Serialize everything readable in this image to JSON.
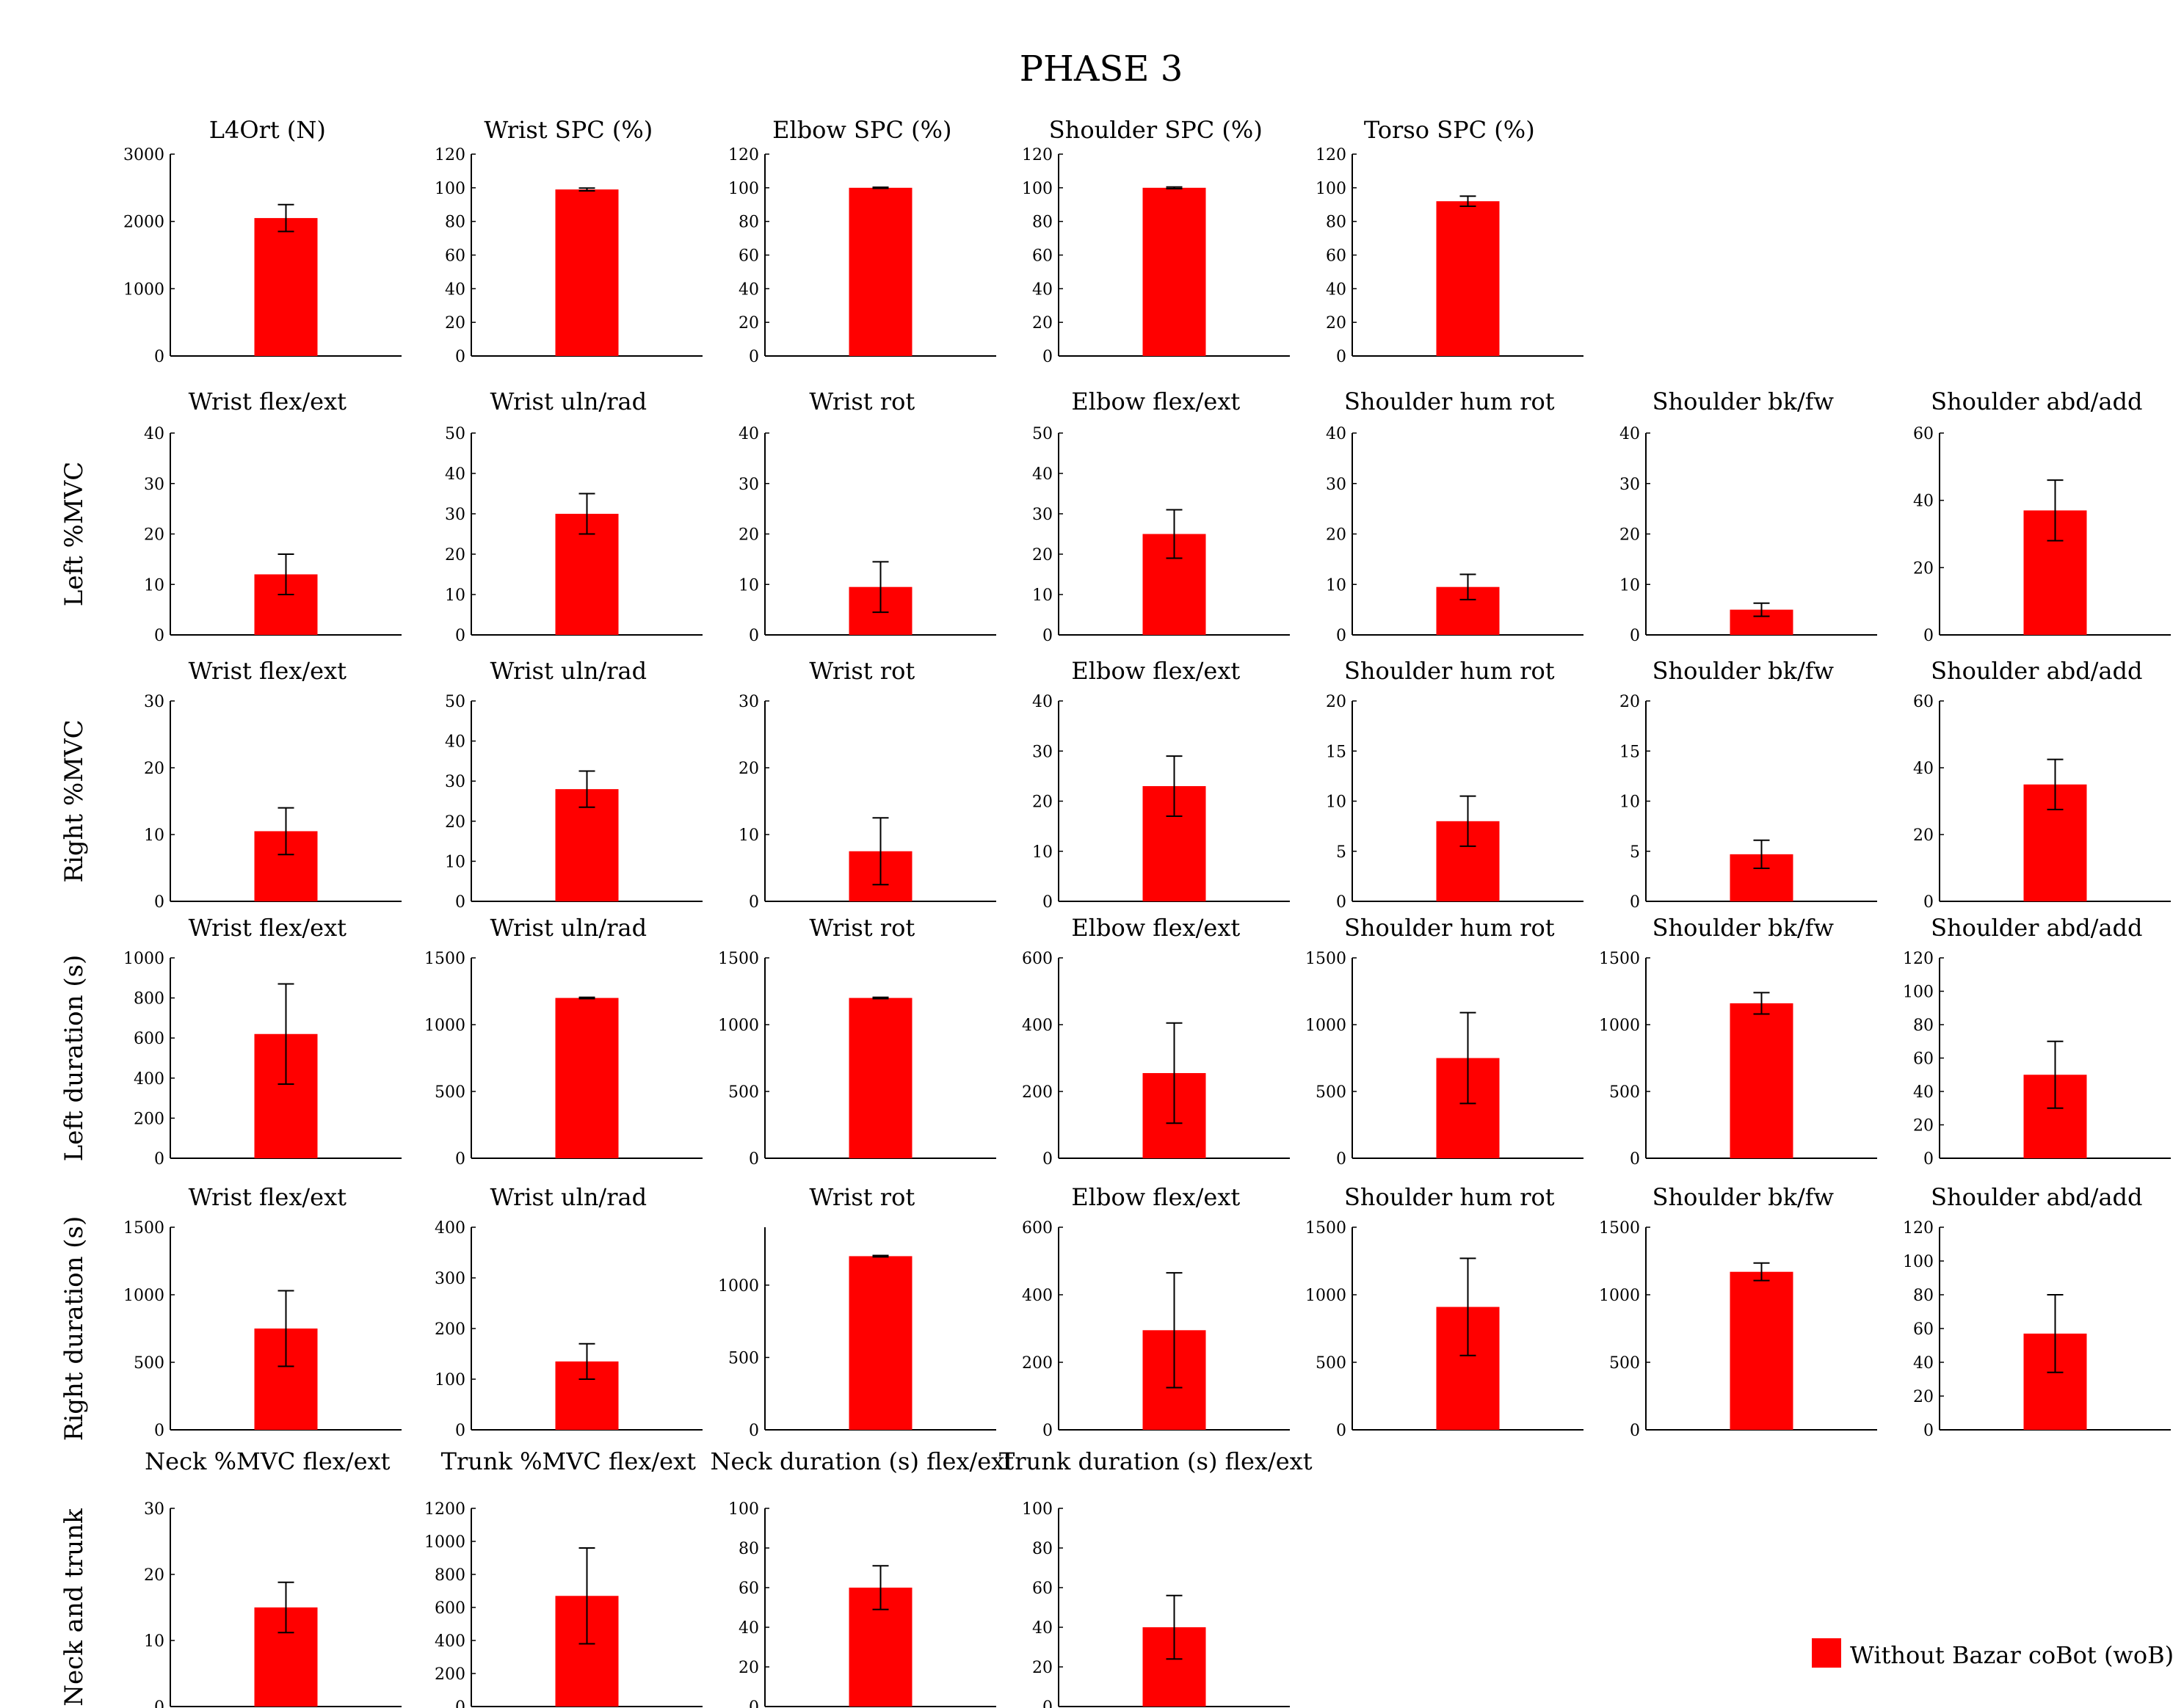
{
  "title": "PHASE 3",
  "legend": {
    "label": "Without Bazar coBot (woB)",
    "color": "#ff0000",
    "position": "bottom-right"
  },
  "chart_data": [
    {
      "row": 0,
      "col": 0,
      "type": "bar",
      "title": "L4Ort (N)",
      "ylim": [
        0,
        3000
      ],
      "ticks": [
        0,
        1000,
        2000,
        3000
      ],
      "value": 2050,
      "error": 200
    },
    {
      "row": 0,
      "col": 1,
      "type": "bar",
      "title": "Wrist SPC (%)",
      "ylim": [
        0,
        120
      ],
      "ticks": [
        0,
        20,
        40,
        60,
        80,
        100,
        120
      ],
      "value": 99,
      "error": 0.8
    },
    {
      "row": 0,
      "col": 2,
      "type": "bar",
      "title": "Elbow SPC (%)",
      "ylim": [
        0,
        120
      ],
      "ticks": [
        0,
        20,
        40,
        60,
        80,
        100,
        120
      ],
      "value": 100,
      "error": 0.3
    },
    {
      "row": 0,
      "col": 3,
      "type": "bar",
      "title": "Shoulder SPC (%)",
      "ylim": [
        0,
        120
      ],
      "ticks": [
        0,
        20,
        40,
        60,
        80,
        100,
        120
      ],
      "value": 100,
      "error": 0.5
    },
    {
      "row": 0,
      "col": 4,
      "type": "bar",
      "title": "Torso SPC (%)",
      "ylim": [
        0,
        120
      ],
      "ticks": [
        0,
        20,
        40,
        60,
        80,
        100,
        120
      ],
      "value": 92,
      "error": 3
    },
    {
      "row": 1,
      "col": 0,
      "type": "bar",
      "title": "Wrist flex/ext",
      "ylim": [
        0,
        40
      ],
      "ticks": [
        0,
        10,
        20,
        30,
        40
      ],
      "value": 12,
      "error": 4
    },
    {
      "row": 1,
      "col": 1,
      "type": "bar",
      "title": "Wrist uln/rad",
      "ylim": [
        0,
        50
      ],
      "ticks": [
        0,
        10,
        20,
        30,
        40,
        50
      ],
      "value": 30,
      "error": 5
    },
    {
      "row": 1,
      "col": 2,
      "type": "bar",
      "title": "Wrist rot",
      "ylim": [
        0,
        40
      ],
      "ticks": [
        0,
        10,
        20,
        30,
        40
      ],
      "value": 9.5,
      "error": 5
    },
    {
      "row": 1,
      "col": 3,
      "type": "bar",
      "title": "Elbow flex/ext",
      "ylim": [
        0,
        50
      ],
      "ticks": [
        0,
        10,
        20,
        30,
        40,
        50
      ],
      "value": 25,
      "error": 6
    },
    {
      "row": 1,
      "col": 4,
      "type": "bar",
      "title": "Shoulder hum rot",
      "ylim": [
        0,
        40
      ],
      "ticks": [
        0,
        10,
        20,
        30,
        40
      ],
      "value": 9.5,
      "error": 2.5
    },
    {
      "row": 1,
      "col": 5,
      "type": "bar",
      "title": "Shoulder bk/fw",
      "ylim": [
        0,
        40
      ],
      "ticks": [
        0,
        10,
        20,
        30,
        40
      ],
      "value": 5,
      "error": 1.3
    },
    {
      "row": 1,
      "col": 6,
      "type": "bar",
      "title": "Shoulder abd/add",
      "ylim": [
        0,
        60
      ],
      "ticks": [
        0,
        20,
        40,
        60
      ],
      "value": 37,
      "error": 9
    },
    {
      "row": 2,
      "col": 0,
      "type": "bar",
      "title": "Wrist flex/ext",
      "ylim": [
        0,
        30
      ],
      "ticks": [
        0,
        10,
        20,
        30
      ],
      "value": 10.5,
      "error": 3.5
    },
    {
      "row": 2,
      "col": 1,
      "type": "bar",
      "title": "Wrist uln/rad",
      "ylim": [
        0,
        50
      ],
      "ticks": [
        0,
        10,
        20,
        30,
        40,
        50
      ],
      "value": 28,
      "error": 4.5
    },
    {
      "row": 2,
      "col": 2,
      "type": "bar",
      "title": "Wrist rot",
      "ylim": [
        0,
        30
      ],
      "ticks": [
        0,
        10,
        20,
        30
      ],
      "value": 7.5,
      "error": 5
    },
    {
      "row": 2,
      "col": 3,
      "type": "bar",
      "title": "Elbow flex/ext",
      "ylim": [
        0,
        40
      ],
      "ticks": [
        0,
        10,
        20,
        30,
        40
      ],
      "value": 23,
      "error": 6
    },
    {
      "row": 2,
      "col": 4,
      "type": "bar",
      "title": "Shoulder hum rot",
      "ylim": [
        0,
        20
      ],
      "ticks": [
        0,
        5,
        10,
        15,
        20
      ],
      "value": 8,
      "error": 2.5
    },
    {
      "row": 2,
      "col": 5,
      "type": "bar",
      "title": "Shoulder bk/fw",
      "ylim": [
        0,
        20
      ],
      "ticks": [
        0,
        5,
        10,
        15,
        20
      ],
      "value": 4.7,
      "error": 1.4
    },
    {
      "row": 2,
      "col": 6,
      "type": "bar",
      "title": "Shoulder abd/add",
      "ylim": [
        0,
        60
      ],
      "ticks": [
        0,
        20,
        40,
        60
      ],
      "value": 35,
      "error": 7.5
    },
    {
      "row": 3,
      "col": 0,
      "type": "bar",
      "title": "Wrist flex/ext",
      "ylim": [
        0,
        1000
      ],
      "ticks": [
        0,
        200,
        400,
        600,
        800,
        1000
      ],
      "value": 620,
      "error": 250
    },
    {
      "row": 3,
      "col": 1,
      "type": "bar",
      "title": "Wrist uln/rad",
      "ylim": [
        0,
        1500
      ],
      "ticks": [
        0,
        500,
        1000,
        1500
      ],
      "value": 1200,
      "error": 5
    },
    {
      "row": 3,
      "col": 2,
      "type": "bar",
      "title": "Wrist rot",
      "ylim": [
        0,
        1500
      ],
      "ticks": [
        0,
        500,
        1000,
        1500
      ],
      "value": 1200,
      "error": 5
    },
    {
      "row": 3,
      "col": 3,
      "type": "bar",
      "title": "Elbow flex/ext",
      "ylim": [
        0,
        600
      ],
      "ticks": [
        0,
        200,
        400,
        600
      ],
      "value": 255,
      "error": 150
    },
    {
      "row": 3,
      "col": 4,
      "type": "bar",
      "title": "Shoulder hum rot",
      "ylim": [
        0,
        1500
      ],
      "ticks": [
        0,
        500,
        1000,
        1500
      ],
      "value": 750,
      "error": 340
    },
    {
      "row": 3,
      "col": 5,
      "type": "bar",
      "title": "Shoulder bk/fw",
      "ylim": [
        0,
        1500
      ],
      "ticks": [
        0,
        500,
        1000,
        1500
      ],
      "value": 1160,
      "error": 80
    },
    {
      "row": 3,
      "col": 6,
      "type": "bar",
      "title": "Shoulder abd/add",
      "ylim": [
        0,
        120
      ],
      "ticks": [
        0,
        20,
        40,
        60,
        80,
        100,
        120
      ],
      "value": 50,
      "error": 20
    },
    {
      "row": 4,
      "col": 0,
      "type": "bar",
      "title": "Wrist flex/ext",
      "ylim": [
        0,
        1500
      ],
      "ticks": [
        0,
        500,
        1000,
        1500
      ],
      "value": 750,
      "error": 280
    },
    {
      "row": 4,
      "col": 1,
      "type": "bar",
      "title": "Wrist uln/rad",
      "ylim": [
        0,
        400
      ],
      "ticks": [
        0,
        100,
        200,
        300,
        400
      ],
      "value": 135,
      "error": 35
    },
    {
      "row": 4,
      "col": 2,
      "type": "bar",
      "title": "Wrist rot",
      "ylim": [
        0,
        1400
      ],
      "ticks": [
        0,
        500,
        1000
      ],
      "value": 1200,
      "error": 5
    },
    {
      "row": 4,
      "col": 3,
      "type": "bar",
      "title": "Elbow flex/ext",
      "ylim": [
        0,
        600
      ],
      "ticks": [
        0,
        200,
        400,
        600
      ],
      "value": 295,
      "error": 170
    },
    {
      "row": 4,
      "col": 4,
      "type": "bar",
      "title": "Shoulder hum rot",
      "ylim": [
        0,
        1500
      ],
      "ticks": [
        0,
        500,
        1000,
        1500
      ],
      "value": 910,
      "error": 360
    },
    {
      "row": 4,
      "col": 5,
      "type": "bar",
      "title": "Shoulder bk/fw",
      "ylim": [
        0,
        1500
      ],
      "ticks": [
        0,
        500,
        1000,
        1500
      ],
      "value": 1170,
      "error": 65
    },
    {
      "row": 4,
      "col": 6,
      "type": "bar",
      "title": "Shoulder abd/add",
      "ylim": [
        0,
        120
      ],
      "ticks": [
        0,
        20,
        40,
        60,
        80,
        100,
        120
      ],
      "value": 57,
      "error": 23
    },
    {
      "row": 5,
      "col": 0,
      "type": "bar",
      "title": "Neck %MVC flex/ext",
      "ylim": [
        0,
        30
      ],
      "ticks": [
        0,
        10,
        20,
        30
      ],
      "value": 15,
      "error": 3.8
    },
    {
      "row": 5,
      "col": 1,
      "type": "bar",
      "title": "Trunk %MVC flex/ext",
      "ylim": [
        0,
        1200
      ],
      "ticks": [
        0,
        200,
        400,
        600,
        800,
        1000,
        1200
      ],
      "value": 670,
      "error": 290
    },
    {
      "row": 5,
      "col": 2,
      "type": "bar",
      "title": "Neck duration (s) flex/ext",
      "ylim": [
        0,
        100
      ],
      "ticks": [
        0,
        20,
        40,
        60,
        80,
        100
      ],
      "value": 60,
      "error": 11
    },
    {
      "row": 5,
      "col": 3,
      "type": "bar",
      "title": "Trunk duration (s) flex/ext",
      "ylim": [
        0,
        100
      ],
      "ticks": [
        0,
        20,
        40,
        60,
        80,
        100
      ],
      "value": 40,
      "error": 16
    }
  ],
  "row_labels": [
    "",
    "Left %MVC",
    "Right %MVC",
    "Left duration (s)",
    "Right duration (s)",
    "Neck and trunk"
  ]
}
